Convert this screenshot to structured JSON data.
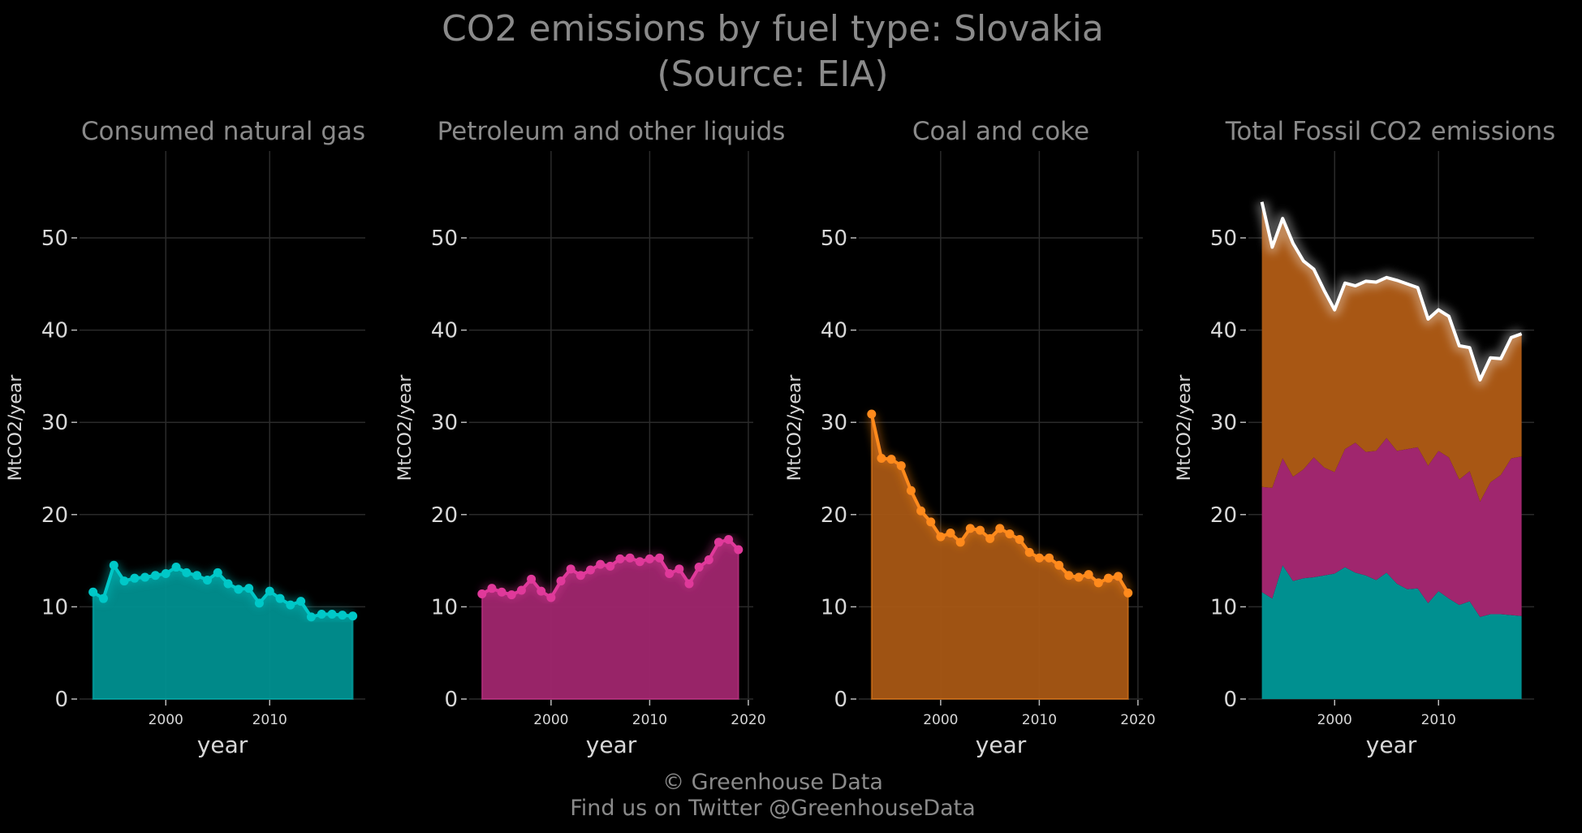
{
  "title_line1": "CO2 emissions by fuel type: Slovakia",
  "title_line2": "(Source: EIA)",
  "footer_line1": "© Greenhouse Data",
  "footer_line2": "Find us on Twitter @GreenhouseData",
  "colors": {
    "gas": "#00c8c8",
    "gas_fill": "#009090",
    "petroleum": "#e0399a",
    "petroleum_fill": "#a0266e",
    "coal": "#ff8a1c",
    "coal_fill": "#a85714",
    "total_line": "#ffffff"
  },
  "chart_data": [
    {
      "type": "area",
      "title": "Consumed natural gas",
      "xlabel": "year",
      "ylabel": "MtCO2/year",
      "xlim": [
        1991.7,
        2019.2
      ],
      "ylim": [
        0,
        58
      ],
      "yticks": [
        0,
        10,
        20,
        30,
        40,
        50
      ],
      "xticks": [
        2000,
        2010
      ],
      "x": [
        1993,
        1994,
        1995,
        1996,
        1997,
        1998,
        1999,
        2000,
        2001,
        2002,
        2003,
        2004,
        2005,
        2006,
        2007,
        2008,
        2009,
        2010,
        2011,
        2012,
        2013,
        2014,
        2015,
        2016,
        2017,
        2018
      ],
      "values": [
        11.6,
        10.9,
        14.5,
        12.8,
        13.1,
        13.2,
        13.4,
        13.6,
        14.3,
        13.7,
        13.4,
        12.9,
        13.7,
        12.5,
        11.9,
        12.0,
        10.4,
        11.7,
        10.9,
        10.2,
        10.6,
        8.9,
        9.2,
        9.2,
        9.1,
        9.0
      ]
    },
    {
      "type": "area",
      "title": "Petroleum and other liquids",
      "xlabel": "year",
      "ylabel": "MtCO2/year",
      "xlim": [
        1991.7,
        2020.5
      ],
      "ylim": [
        0,
        58
      ],
      "yticks": [
        0,
        10,
        20,
        30,
        40,
        50
      ],
      "xticks": [
        2000,
        2010,
        2020
      ],
      "x": [
        1993,
        1994,
        1995,
        1996,
        1997,
        1998,
        1999,
        2000,
        2001,
        2002,
        2003,
        2004,
        2005,
        2006,
        2007,
        2008,
        2009,
        2010,
        2011,
        2012,
        2013,
        2014,
        2015,
        2016,
        2017,
        2018,
        2019
      ],
      "values": [
        11.4,
        12.0,
        11.6,
        11.3,
        11.8,
        13.0,
        11.7,
        11.0,
        12.8,
        14.1,
        13.4,
        14.0,
        14.6,
        14.4,
        15.2,
        15.3,
        14.9,
        15.2,
        15.3,
        13.6,
        14.1,
        12.5,
        14.3,
        15.1,
        17.0,
        17.3,
        16.2
      ]
    },
    {
      "type": "area",
      "title": "Coal and coke",
      "xlabel": "year",
      "ylabel": "MtCO2/year",
      "xlim": [
        1991.7,
        2020.5
      ],
      "ylim": [
        0,
        58
      ],
      "yticks": [
        0,
        10,
        20,
        30,
        40,
        50
      ],
      "xticks": [
        2000,
        2010,
        2020
      ],
      "x": [
        1993,
        1994,
        1995,
        1996,
        1997,
        1998,
        1999,
        2000,
        2001,
        2002,
        2003,
        2004,
        2005,
        2006,
        2007,
        2008,
        2009,
        2010,
        2011,
        2012,
        2013,
        2014,
        2015,
        2016,
        2017,
        2018,
        2019
      ],
      "values": [
        30.9,
        26.1,
        26.0,
        25.3,
        22.6,
        20.4,
        19.2,
        17.6,
        18.0,
        17.0,
        18.5,
        18.3,
        17.4,
        18.5,
        17.9,
        17.3,
        15.9,
        15.3,
        15.3,
        14.5,
        13.4,
        13.2,
        13.5,
        12.6,
        13.1,
        13.3,
        11.5
      ]
    },
    {
      "type": "area",
      "title": "Total Fossil CO2 emissions",
      "xlabel": "year",
      "ylabel": "MtCO2/year",
      "xlim": [
        1991.7,
        2019.2
      ],
      "ylim": [
        0,
        58
      ],
      "yticks": [
        0,
        10,
        20,
        30,
        40,
        50
      ],
      "xticks": [
        2000,
        2010
      ],
      "x": [
        1993,
        1994,
        1995,
        1996,
        1997,
        1998,
        1999,
        2000,
        2001,
        2002,
        2003,
        2004,
        2005,
        2006,
        2007,
        2008,
        2009,
        2010,
        2011,
        2012,
        2013,
        2014,
        2015,
        2016,
        2017,
        2018
      ],
      "series": [
        {
          "values": [
            11.6,
            10.9,
            14.5,
            12.8,
            13.1,
            13.2,
            13.4,
            13.6,
            14.3,
            13.7,
            13.4,
            12.9,
            13.7,
            12.5,
            11.9,
            12.0,
            10.4,
            11.7,
            10.9,
            10.2,
            10.6,
            8.9,
            9.2,
            9.2,
            9.1,
            9.0
          ]
        },
        {
          "values": [
            11.4,
            12.0,
            11.6,
            11.3,
            11.8,
            13.0,
            11.7,
            11.0,
            12.8,
            14.1,
            13.4,
            14.0,
            14.6,
            14.4,
            15.2,
            15.3,
            14.9,
            15.2,
            15.3,
            13.6,
            14.1,
            12.5,
            14.3,
            15.1,
            17.0,
            17.3
          ]
        },
        {
          "values": [
            30.9,
            26.1,
            26.0,
            25.3,
            22.6,
            20.4,
            19.2,
            17.6,
            18.0,
            17.0,
            18.5,
            18.3,
            17.4,
            18.5,
            17.9,
            17.3,
            15.9,
            15.3,
            15.3,
            14.5,
            13.4,
            13.2,
            13.5,
            12.6,
            13.1,
            13.3
          ]
        }
      ],
      "total": [
        53.9,
        49.0,
        52.1,
        49.4,
        47.5,
        46.6,
        44.3,
        42.2,
        45.1,
        44.8,
        45.3,
        45.2,
        45.7,
        45.4,
        45.0,
        44.6,
        41.2,
        42.2,
        41.5,
        38.3,
        38.1,
        34.6,
        37.0,
        36.9,
        39.2,
        39.6
      ]
    }
  ]
}
